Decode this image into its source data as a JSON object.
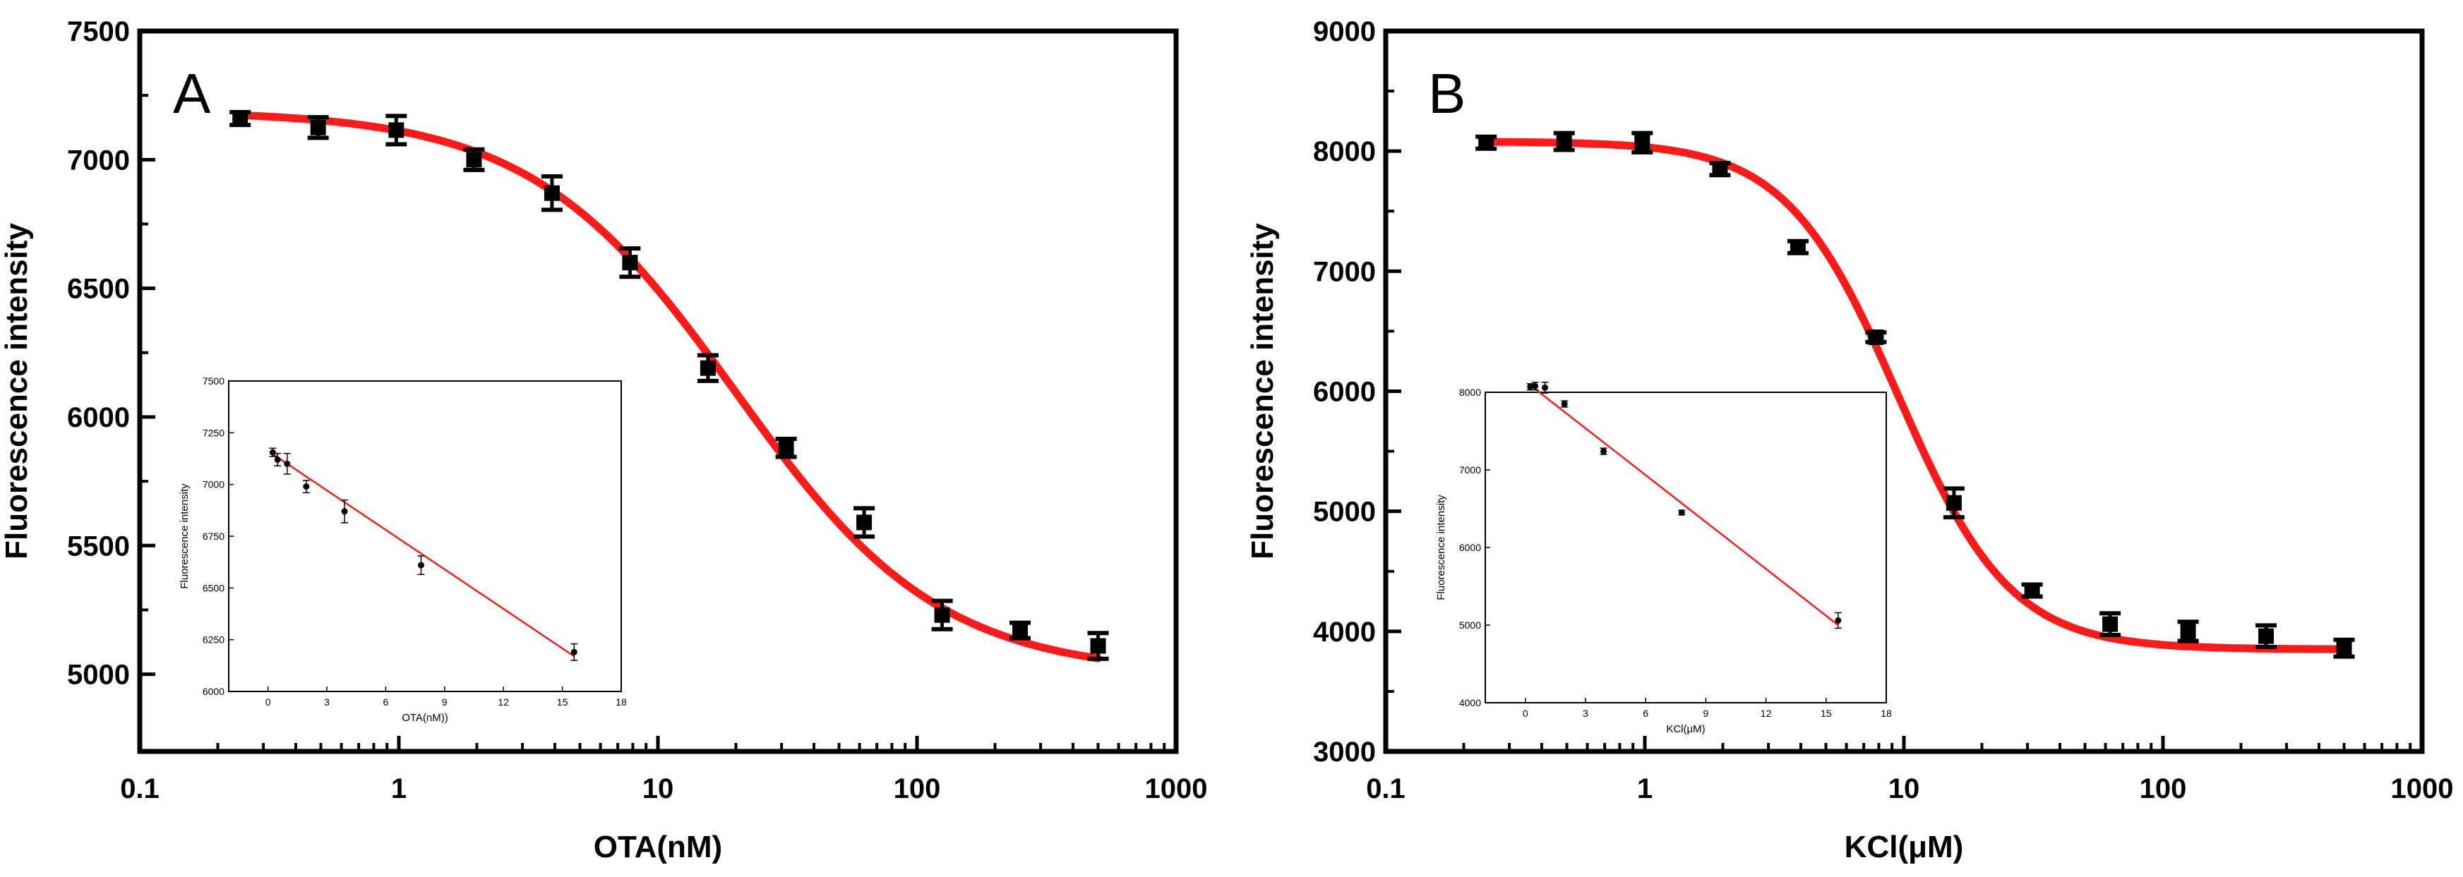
{
  "figure": {
    "colors": {
      "fit": "#ff1a1a",
      "point": "#000000",
      "axis": "#000000"
    }
  },
  "chart_data": [
    {
      "type": "scatter",
      "panel_label": "A",
      "xlabel": "OTA(nM)",
      "ylabel": "Fluorescence intensity",
      "xscale": "log",
      "xlim": [
        0.1,
        1000
      ],
      "ylim": [
        4700,
        7500
      ],
      "xticks": [
        0.1,
        1,
        10,
        100,
        1000
      ],
      "xtick_labels": [
        "0.1",
        "1",
        "10",
        "100",
        "1000"
      ],
      "yticks": [
        5000,
        5500,
        6000,
        6500,
        7000,
        7500
      ],
      "ytick_labels": [
        "5000",
        "5500",
        "6000",
        "6500",
        "7000",
        "7500"
      ],
      "points": [
        {
          "x": 0.244,
          "y": 7160,
          "err": 25
        },
        {
          "x": 0.488,
          "y": 7125,
          "err": 40
        },
        {
          "x": 0.977,
          "y": 7115,
          "err": 55
        },
        {
          "x": 1.95,
          "y": 7000,
          "err": 40
        },
        {
          "x": 3.9,
          "y": 6870,
          "err": 65
        },
        {
          "x": 7.8,
          "y": 6600,
          "err": 55
        },
        {
          "x": 15.6,
          "y": 6190,
          "err": 50
        },
        {
          "x": 31.25,
          "y": 5880,
          "err": 35
        },
        {
          "x": 62.5,
          "y": 5590,
          "err": 55
        },
        {
          "x": 125,
          "y": 5230,
          "err": 55
        },
        {
          "x": 250,
          "y": 5170,
          "err": 30
        },
        {
          "x": 500,
          "y": 5110,
          "err": 50
        }
      ],
      "fit": {
        "model": "four-parameter logistic",
        "top": 7190,
        "bottom": 5000,
        "x0": 20,
        "hill": 1.1
      },
      "inset": {
        "type": "scatter",
        "xlabel": "OTA(nM))",
        "ylabel": "Fluorescence intensity",
        "xlim": [
          -2,
          18
        ],
        "ylim": [
          6000,
          7500
        ],
        "xticks": [
          0,
          3,
          6,
          9,
          12,
          15,
          18
        ],
        "xtick_labels": [
          "0",
          "3",
          "6",
          "9",
          "12",
          "15",
          "18"
        ],
        "yticks": [
          6000,
          6250,
          6500,
          6750,
          7000,
          7250,
          7500
        ],
        "ytick_labels": [
          "6000",
          "6250",
          "6500",
          "6750",
          "7000",
          "7250",
          "7500"
        ],
        "points": [
          {
            "x": 0.244,
            "y": 7155,
            "err": 20
          },
          {
            "x": 0.488,
            "y": 7120,
            "err": 30
          },
          {
            "x": 0.977,
            "y": 7100,
            "err": 50
          },
          {
            "x": 1.95,
            "y": 6990,
            "err": 30
          },
          {
            "x": 3.9,
            "y": 6870,
            "err": 55
          },
          {
            "x": 7.8,
            "y": 6610,
            "err": 45
          },
          {
            "x": 15.6,
            "y": 6190,
            "err": 40
          }
        ],
        "fit_line": {
          "x": [
            0.2,
            15.6
          ],
          "y": [
            7150,
            6170
          ]
        }
      }
    },
    {
      "type": "scatter",
      "panel_label": "B",
      "xlabel": "KCl(μM)",
      "ylabel": "Fluorescence intensity",
      "xscale": "log",
      "xlim": [
        0.1,
        1000
      ],
      "ylim": [
        3000,
        9000
      ],
      "xticks": [
        0.1,
        1,
        10,
        100,
        1000
      ],
      "xtick_labels": [
        "0.1",
        "1",
        "10",
        "100",
        "1000"
      ],
      "yticks": [
        3000,
        4000,
        5000,
        6000,
        7000,
        8000,
        9000
      ],
      "ytick_labels": [
        "3000",
        "4000",
        "5000",
        "6000",
        "7000",
        "8000",
        "9000"
      ],
      "points": [
        {
          "x": 0.244,
          "y": 8070,
          "err": 50
        },
        {
          "x": 0.488,
          "y": 8080,
          "err": 70
        },
        {
          "x": 0.977,
          "y": 8070,
          "err": 80
        },
        {
          "x": 1.95,
          "y": 7850,
          "err": 50
        },
        {
          "x": 3.9,
          "y": 7200,
          "err": 50
        },
        {
          "x": 7.8,
          "y": 6450,
          "err": 40
        },
        {
          "x": 15.6,
          "y": 5070,
          "err": 120
        },
        {
          "x": 31.25,
          "y": 4340,
          "err": 50
        },
        {
          "x": 62.5,
          "y": 4060,
          "err": 90
        },
        {
          "x": 125,
          "y": 4000,
          "err": 80
        },
        {
          "x": 250,
          "y": 3960,
          "err": 90
        },
        {
          "x": 500,
          "y": 3860,
          "err": 70
        }
      ],
      "fit": {
        "model": "four-parameter logistic",
        "top": 8080,
        "bottom": 3850,
        "x0": 9.5,
        "hill": 2.0
      },
      "inset": {
        "type": "scatter",
        "xlabel": "KCl(μM)",
        "ylabel": "Fluorescence intensity",
        "xlim": [
          -2,
          18
        ],
        "ylim": [
          4000,
          8000
        ],
        "xticks": [
          0,
          3,
          6,
          9,
          12,
          15,
          18
        ],
        "xtick_labels": [
          "0",
          "3",
          "6",
          "9",
          "12",
          "15",
          "18"
        ],
        "yticks": [
          4000,
          5000,
          6000,
          7000,
          8000
        ],
        "ytick_labels": [
          "4000",
          "5000",
          "6000",
          "7000",
          "8000"
        ],
        "points": [
          {
            "x": 0.244,
            "y": 8070,
            "err": 40
          },
          {
            "x": 0.488,
            "y": 8080,
            "err": 50
          },
          {
            "x": 0.977,
            "y": 8060,
            "err": 70
          },
          {
            "x": 1.95,
            "y": 7850,
            "err": 40
          },
          {
            "x": 3.9,
            "y": 7240,
            "err": 40
          },
          {
            "x": 7.8,
            "y": 6450,
            "err": 30
          },
          {
            "x": 15.6,
            "y": 5060,
            "err": 100
          }
        ],
        "fit_line": {
          "x": [
            0.2,
            15.6
          ],
          "y": [
            8100,
            5000
          ]
        }
      }
    }
  ]
}
